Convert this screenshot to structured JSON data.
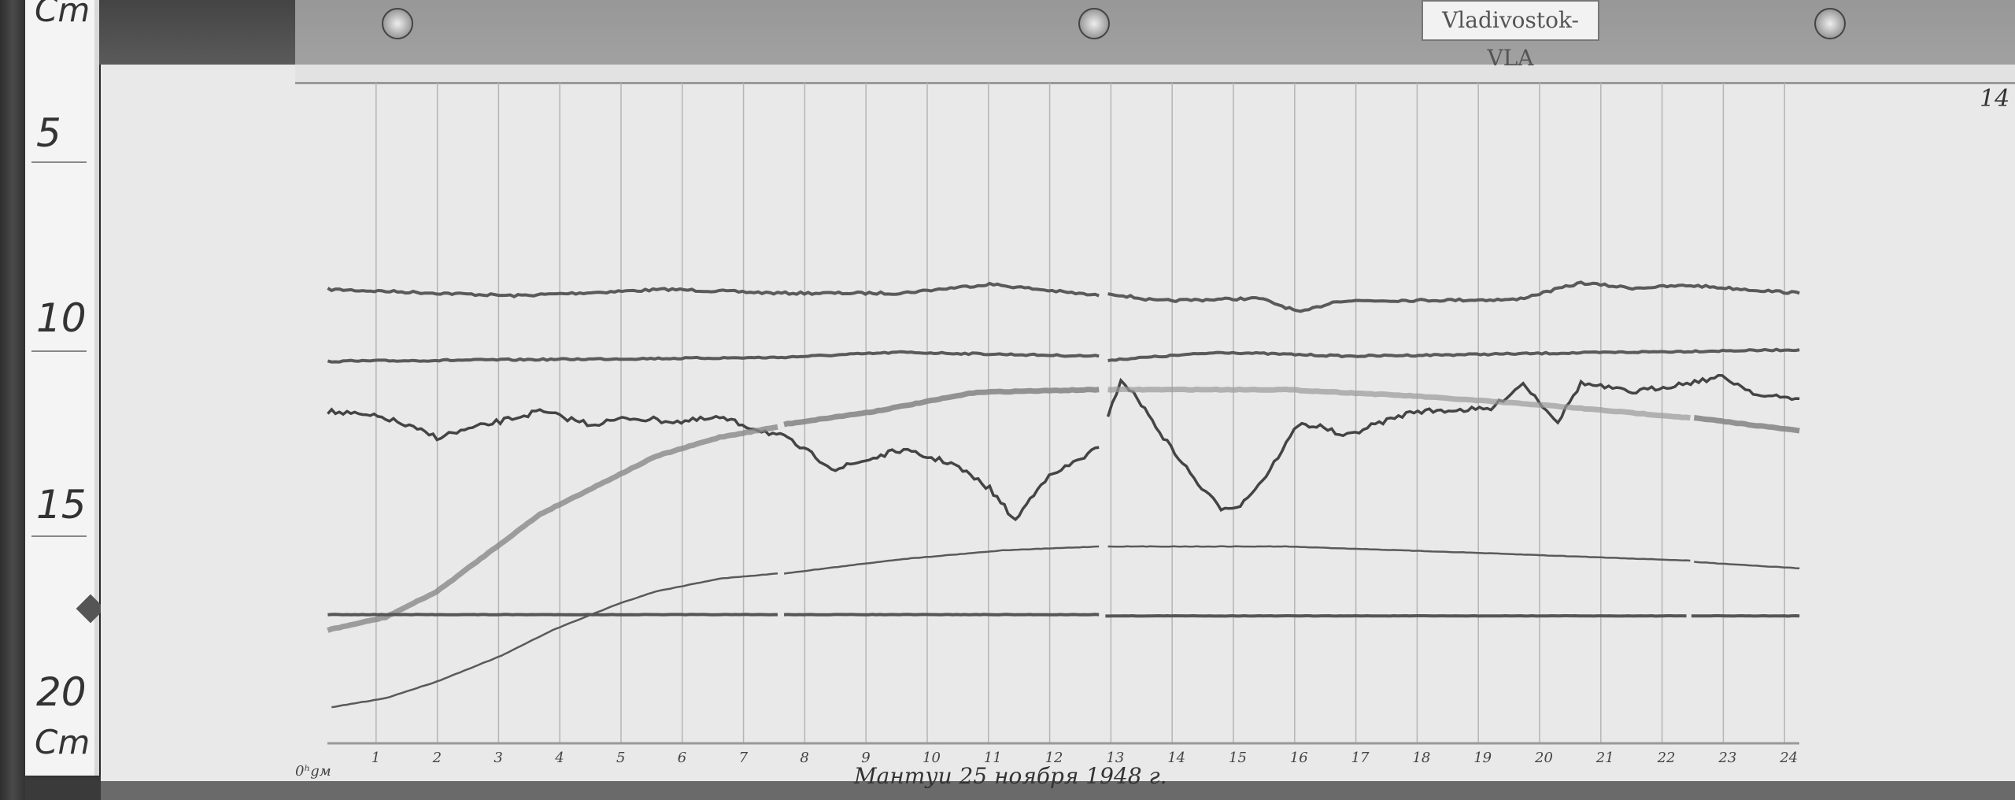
{
  "station_label": "Vladivostok-VLA",
  "sheet_number": "14",
  "caption": "Мантуи 25 ноября 1948 г.",
  "hour_axis_start_label": "0ʰgм",
  "hour_ticks": [
    "1",
    "2",
    "3",
    "4",
    "5",
    "6",
    "7",
    "8",
    "9",
    "10",
    "11",
    "12",
    "13",
    "14",
    "15",
    "16",
    "17",
    "18",
    "19",
    "20",
    "21",
    "22",
    "23",
    "24"
  ],
  "ruler": {
    "unit": "Cm",
    "marks": [
      "5",
      "10",
      "15",
      "20"
    ]
  },
  "colors": {
    "paper": "#e9e9e9",
    "trace": "#5a5a5a",
    "grid": "#b5b5b5"
  }
}
